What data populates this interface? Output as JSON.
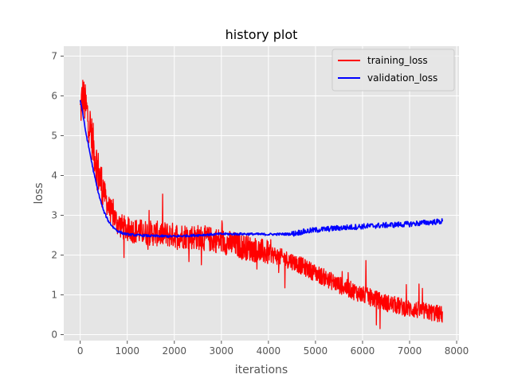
{
  "chart_data": {
    "type": "line",
    "title": "history plot",
    "xlabel": "iterations",
    "ylabel": "loss",
    "xlim": [
      -350,
      8050
    ],
    "ylim": [
      -0.15,
      7.25
    ],
    "xticks": [
      0,
      1000,
      2000,
      3000,
      4000,
      5000,
      6000,
      7000,
      8000
    ],
    "yticks": [
      0,
      1,
      2,
      3,
      4,
      5,
      6,
      7
    ],
    "grid": true,
    "legend_position": "top-right",
    "background": "#E5E5E5",
    "series": [
      {
        "name": "training_loss",
        "color": "#FF0000",
        "noise": "high",
        "x": [
          0,
          50,
          100,
          200,
          300,
          400,
          500,
          600,
          700,
          800,
          900,
          1000,
          1200,
          1500,
          2000,
          2500,
          3000,
          3500,
          4000,
          4500,
          5000,
          5500,
          6000,
          6500,
          7000,
          7500,
          7700
        ],
        "y": [
          5.6,
          6.0,
          5.8,
          5.3,
          4.6,
          4.0,
          3.6,
          3.2,
          3.0,
          2.8,
          2.7,
          2.65,
          2.6,
          2.55,
          2.5,
          2.45,
          2.35,
          2.2,
          2.05,
          1.85,
          1.55,
          1.25,
          1.0,
          0.8,
          0.65,
          0.55,
          0.5
        ]
      },
      {
        "name": "validation_loss",
        "color": "#0000FF",
        "noise": "low",
        "x": [
          0,
          50,
          100,
          200,
          300,
          400,
          500,
          600,
          700,
          800,
          900,
          1000,
          1200,
          1500,
          2000,
          2500,
          3000,
          3500,
          4000,
          4500,
          4700,
          5000,
          5500,
          6000,
          6500,
          7000,
          7500,
          7700
        ],
        "y": [
          5.9,
          5.6,
          5.2,
          4.6,
          4.0,
          3.5,
          3.1,
          2.85,
          2.7,
          2.6,
          2.55,
          2.52,
          2.5,
          2.48,
          2.47,
          2.5,
          2.53,
          2.53,
          2.52,
          2.53,
          2.58,
          2.63,
          2.68,
          2.72,
          2.75,
          2.78,
          2.83,
          2.85
        ]
      }
    ]
  }
}
